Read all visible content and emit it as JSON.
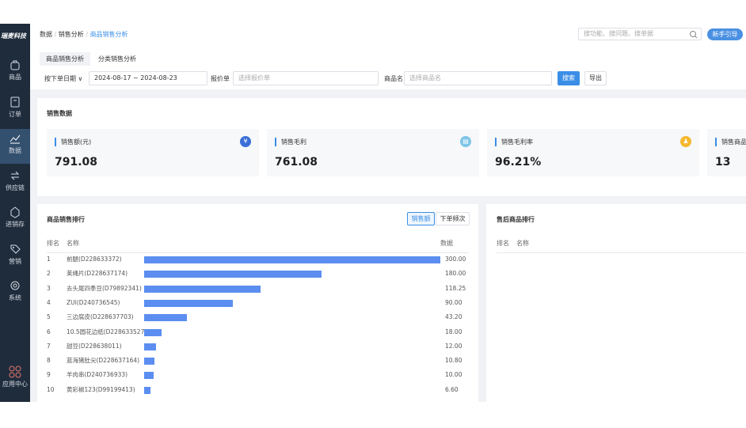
{
  "sidebar": {
    "logo": "瑞麦科技",
    "items": [
      "商品",
      "订单",
      "数据",
      "供应链",
      "进销存",
      "营销",
      "系统"
    ],
    "app_center": "应用中心"
  },
  "header": {
    "breadcrumb": [
      "数据",
      "销售分析",
      "商品销售分析"
    ],
    "search_placeholder": "搜功能、搜问题、搜单据",
    "guide_button": "新手引导"
  },
  "tabs": [
    "商品销售分析",
    "分类销售分析"
  ],
  "filters": {
    "date_type": "按下单日期",
    "date_range": "2024-08-17 ~ 2024-08-23",
    "quote_label": "报价单",
    "quote_placeholder": "选择报价单",
    "product_label": "商品名",
    "product_placeholder": "选择商品名",
    "search_button": "搜索",
    "export_button": "导出"
  },
  "sales_data": {
    "title": "销售数据",
    "cards": [
      {
        "label": "销售额(元)",
        "value": "791.08"
      },
      {
        "label": "销售毛利",
        "value": "761.08"
      },
      {
        "label": "销售毛利率",
        "value": "96.21%"
      },
      {
        "label": "销售商品总",
        "value": "13"
      }
    ]
  },
  "ranking": {
    "title": "商品销售排行",
    "toggle": [
      "销售额",
      "下单频次"
    ],
    "columns": [
      "排名",
      "名称",
      "数据"
    ],
    "rows": [
      {
        "rank": 1,
        "name": "前腿(D228633372)",
        "value": 300,
        "value_label": "300.00"
      },
      {
        "rank": 2,
        "name": "荚绳片(D228637174)",
        "value": 180,
        "value_label": "180.00"
      },
      {
        "rank": 3,
        "name": "去头尾四季豆(D79892341)",
        "value": 118.25,
        "value_label": "118.25"
      },
      {
        "rank": 4,
        "name": "ZUI(D240736545)",
        "value": 90,
        "value_label": "90.00"
      },
      {
        "rank": 5,
        "name": "三边腐皮(D228637703)",
        "value": 43.2,
        "value_label": "43.20"
      },
      {
        "rank": 6,
        "name": "10.5圆花边纸(D228633527)",
        "value": 18,
        "value_label": "18.00"
      },
      {
        "rank": 7,
        "name": "甜豆(D228638011)",
        "value": 12,
        "value_label": "12.00"
      },
      {
        "rank": 8,
        "name": "蓝海猪肚尖(D228637164)",
        "value": 10.8,
        "value_label": "10.80"
      },
      {
        "rank": 9,
        "name": "羊肉串(D240736933)",
        "value": 10,
        "value_label": "10.00"
      },
      {
        "rank": 10,
        "name": "黄彩椒123(D99199413)",
        "value": 6.6,
        "value_label": "6.60"
      }
    ]
  },
  "after_sales": {
    "title": "售后商品排行",
    "columns": [
      "排名",
      "名称"
    ]
  }
}
